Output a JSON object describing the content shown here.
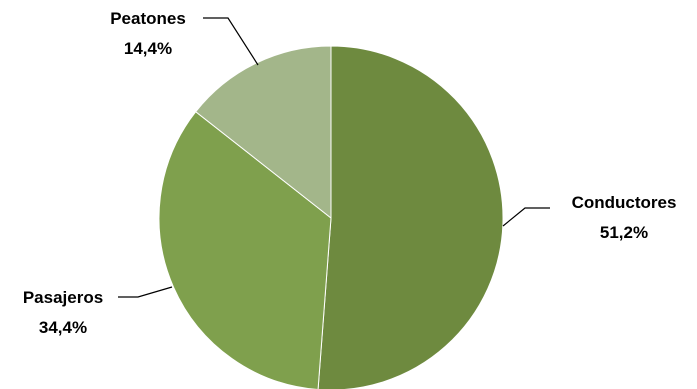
{
  "chart_data": {
    "type": "pie",
    "slices": [
      {
        "name": "Conductores",
        "value": 51.2,
        "label": "51,2%",
        "color": "#6e8a3f"
      },
      {
        "name": "Pasajeros",
        "value": 34.4,
        "label": "34,4%",
        "color": "#7fa04d"
      },
      {
        "name": "Peatones",
        "value": 14.4,
        "label": "14,4%",
        "color": "#a3b68a"
      }
    ],
    "start_angle_deg": 0,
    "direction": "clockwise",
    "legend": "none"
  }
}
